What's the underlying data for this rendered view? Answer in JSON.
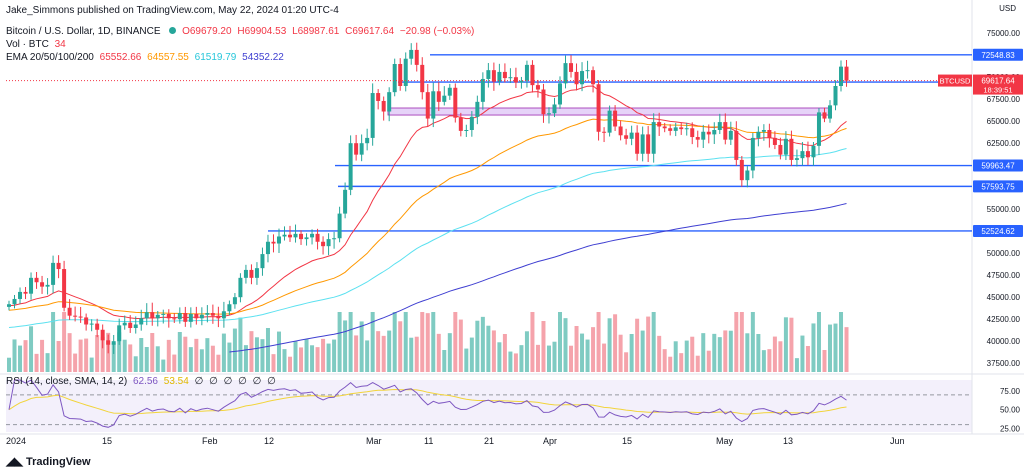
{
  "published_line": "Jake_Simmons published on TradingView.com, May 22, 2024 01:20 UTC-4",
  "header": {
    "symbol": "Bitcoin / U.S. Dollar, 1D, BINANCE",
    "ohlc": {
      "o": "O69679.20",
      "h": "H69904.53",
      "l": "L68987.61",
      "c": "C69617.64",
      "chg": "−20.98 (−0.03%)"
    },
    "vol_label": "Vol · BTC",
    "vol_value": "34",
    "ema_label": "EMA 20/50/100/200",
    "ema_values": [
      "65552.66",
      "64557.55",
      "61519.79",
      "54352.22"
    ],
    "rsi_label": "RSI (14, close, SMA, 14, 2)",
    "rsi_values": [
      "62.56",
      "53.54"
    ],
    "rsi_placeholders": [
      "∅",
      "∅",
      "∅",
      "∅",
      "∅",
      "∅"
    ]
  },
  "currency": "USD",
  "footer": "TradingView",
  "colors": {
    "up": "#26a69a",
    "down": "#f23645",
    "vol_up": "#7fcbc2",
    "vol_down": "#f5a3ab",
    "ema20": "#f23645",
    "ema50": "#ff9800",
    "ema100": "#5ce1f0",
    "ema200": "#3f3fd1",
    "level": "#2962ff",
    "rsi": "#7e57c2",
    "rsi_ma": "#f2d43b"
  },
  "chart_data": {
    "type": "candlestick",
    "price_axis_ticks": [
      37500,
      40000,
      42500,
      45000,
      47500,
      50000,
      52500,
      55000,
      57500,
      60000,
      62500,
      65000,
      67500,
      70000,
      72500,
      75000
    ],
    "price_range": [
      36500,
      76500
    ],
    "x_labels": [
      "2024",
      "15",
      "Feb",
      "12",
      "Mar",
      "11",
      "21",
      "Apr",
      "15",
      "May",
      "13",
      "Jun"
    ],
    "candle_closes": [
      44200,
      44800,
      45600,
      45400,
      47200,
      46700,
      46200,
      46400,
      48900,
      48200,
      43800,
      42900,
      42800,
      42700,
      41900,
      42000,
      41300,
      40100,
      39600,
      40000,
      41800,
      42100,
      41500,
      41900,
      42600,
      43300,
      42600,
      43000,
      43100,
      42600,
      42500,
      43200,
      42200,
      43100,
      42600,
      43000,
      43200,
      42900,
      42600,
      43400,
      44200,
      45000,
      47200,
      48100,
      47200,
      48300,
      49900,
      51300,
      51100,
      51900,
      52100,
      51800,
      52200,
      51600,
      51800,
      52200,
      51300,
      50800,
      51600,
      51700,
      54500,
      57200,
      62500,
      61200,
      62500,
      63100,
      68200,
      67300,
      66100,
      68300,
      71500,
      69000,
      72100,
      73100,
      71400,
      68300,
      65300,
      68400,
      67200,
      67900,
      68800,
      65400,
      63900,
      64000,
      65500,
      67200,
      69800,
      70800,
      69500,
      70600,
      69900,
      70000,
      69400,
      69600,
      71400,
      69100,
      68600,
      65800,
      65900,
      66900,
      69300,
      71600,
      70600,
      69200,
      70700,
      70800,
      69200,
      63800,
      63700,
      66200,
      64400,
      63400,
      63000,
      63700,
      61300,
      63500,
      61300,
      64900,
      64400,
      64200,
      63900,
      64300,
      64100,
      64200,
      63200,
      62900,
      63800,
      63500,
      64000,
      64900,
      62900,
      63900,
      60600,
      58300,
      59400,
      63100,
      63800,
      64000,
      63100,
      62300,
      61200,
      63000,
      60600,
      60800,
      61600,
      60900,
      62200,
      66000,
      65300,
      66800,
      69000,
      71200,
      69600
    ],
    "levels": [
      72548.83,
      69446.69,
      59963.47,
      57593.75,
      52524.62
    ],
    "level_labels": [
      "72548.83",
      "69446.69",
      "59963.47",
      "57593.75",
      "52524.62"
    ],
    "resistance_band": [
      65700,
      66500
    ],
    "last_price_label": "BTCUSD",
    "last_price_value": "69617.64",
    "countdown": "18:39:51",
    "ema_last": {
      "ema20": 65552.66,
      "ema50": 64557.55,
      "ema100": 61519.79,
      "ema200": 54352.22
    },
    "rsi_axis_ticks": [
      "25.00",
      "50.00",
      "75.00"
    ],
    "rsi_range": [
      20,
      90
    ],
    "rsi_levels": [
      30,
      70
    ]
  }
}
